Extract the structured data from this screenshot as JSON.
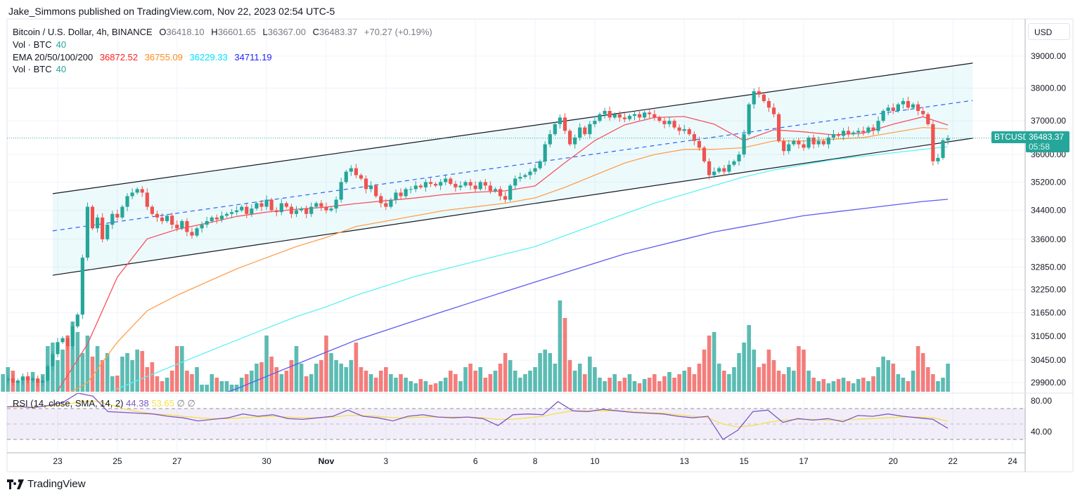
{
  "header": {
    "published_text": "Jake_Simmons published on TradingView.com, Nov 22, 2023 02:54 UTC-5"
  },
  "legend": {
    "symbol": "Bitcoin / U.S. Dollar, 4h, BINANCE",
    "o_label": "O",
    "o": "36418.10",
    "h_label": "H",
    "h": "36601.65",
    "l_label": "L",
    "l": "36367.00",
    "c_label": "C",
    "c": "36483.37",
    "change": "+70.27 (+0.19%)",
    "vol_label": "Vol · BTC",
    "vol_value": "40",
    "ema_label": "EMA 20/50/100/200",
    "ema_values": [
      "36872.52",
      "36755.09",
      "36229.33",
      "34711.19"
    ],
    "vol2_label": "Vol · BTC",
    "vol2_value": "40"
  },
  "rsi_legend": {
    "label": "RSI (14, close, SMA, 14, 2)",
    "rsi": "44.38",
    "sma": "53.65",
    "na1": "∅",
    "na2": "∅"
  },
  "price_axis": {
    "currency": "USD",
    "symbol_tag": "BTCUSD",
    "last_price": "36483.37",
    "countdown": "05:58"
  },
  "footer": {
    "logo_text": "TradingView"
  },
  "colors": {
    "up": "#26a69a",
    "down": "#ef5350",
    "ema20": "#f7525f",
    "ema50": "#ffa04d",
    "ema100": "#5ef2f2",
    "ema200": "#5b5bf0",
    "ema20_legend": "#ff2222",
    "ema50_legend": "#ff8c1a",
    "ema100_legend": "#00e5ff",
    "ema200_legend": "#2222ff",
    "rsi": "#7e57c2",
    "rsi_sma": "#f5e04a",
    "channel": "#131722",
    "midline": "#2962ff"
  },
  "chart_data": {
    "type": "candlestick",
    "symbol": "BTCUSD",
    "interval": "4h",
    "first_candle_time": "2023-10-21T04:00",
    "price_scale": "log",
    "grid": true,
    "y_ticks": [
      39000,
      38000,
      37000,
      36000,
      35200,
      34400,
      33600,
      32850,
      32250,
      31650,
      31050,
      30450,
      29900
    ],
    "x_ticks": [
      {
        "label": "23",
        "date": "2023-10-23"
      },
      {
        "label": "25",
        "date": "2023-10-25"
      },
      {
        "label": "27",
        "date": "2023-10-27"
      },
      {
        "label": "30",
        "date": "2023-10-30"
      },
      {
        "label": "Nov",
        "date": "2023-11-01"
      },
      {
        "label": "3",
        "date": "2023-11-03"
      },
      {
        "label": "6",
        "date": "2023-11-06"
      },
      {
        "label": "8",
        "date": "2023-11-08"
      },
      {
        "label": "10",
        "date": "2023-11-10"
      },
      {
        "label": "13",
        "date": "2023-11-13"
      },
      {
        "label": "15",
        "date": "2023-11-15"
      },
      {
        "label": "17",
        "date": "2023-11-17"
      },
      {
        "label": "20",
        "date": "2023-11-20"
      },
      {
        "label": "22",
        "date": "2023-11-22"
      },
      {
        "label": "24",
        "date": "2023-11-24"
      }
    ],
    "closes": [
      29950,
      30000,
      29900,
      29950,
      30050,
      29950,
      30000,
      29900,
      29950,
      30300,
      30600,
      30900,
      31000,
      30800,
      31300,
      31600,
      33100,
      34500,
      33900,
      34200,
      33600,
      34000,
      34300,
      34200,
      34500,
      34800,
      34900,
      35000,
      34900,
      34500,
      34300,
      34200,
      34100,
      34250,
      34000,
      33900,
      34100,
      33800,
      33700,
      33900,
      34000,
      34100,
      34200,
      34150,
      34250,
      34300,
      34350,
      34400,
      34500,
      34300,
      34450,
      34600,
      34500,
      34700,
      34400,
      34350,
      34600,
      34500,
      34300,
      34400,
      34450,
      34300,
      34500,
      34600,
      34500,
      34400,
      34450,
      34700,
      35200,
      35500,
      35600,
      35400,
      35300,
      35000,
      35100,
      34800,
      34600,
      34500,
      34700,
      34900,
      34800,
      35000,
      35000,
      35100,
      35050,
      35200,
      35150,
      35100,
      35200,
      35300,
      35150,
      35050,
      35100,
      35200,
      35100,
      35000,
      35200,
      35100,
      34950,
      35000,
      34800,
      34700,
      35100,
      35300,
      35350,
      35400,
      35500,
      35600,
      35800,
      36300,
      36600,
      36900,
      37100,
      36700,
      36300,
      36500,
      36800,
      36600,
      36900,
      37000,
      37200,
      37300,
      37100,
      37200,
      37100,
      37050,
      37150,
      37200,
      37100,
      37250,
      37200,
      37100,
      37000,
      36900,
      37000,
      36800,
      36700,
      36750,
      36600,
      36400,
      36200,
      35800,
      35400,
      35500,
      35600,
      35500,
      35700,
      35800,
      36000,
      36600,
      37500,
      37900,
      37800,
      37600,
      37400,
      37200,
      36400,
      36100,
      36300,
      36400,
      36300,
      36200,
      36500,
      36300,
      36400,
      36300,
      36500,
      36600,
      36550,
      36700,
      36600,
      36650,
      36700,
      36650,
      36800,
      36700,
      37000,
      37300,
      37400,
      37300,
      37500,
      37600,
      37400,
      37500,
      37300,
      37200,
      36900,
      35800,
      35900,
      36418.1,
      36483.37
    ],
    "volumes": [
      25,
      35,
      30,
      15,
      20,
      22,
      28,
      15,
      25,
      65,
      70,
      45,
      60,
      80,
      100,
      85,
      55,
      80,
      50,
      65,
      45,
      55,
      22,
      23,
      50,
      55,
      45,
      60,
      58,
      35,
      42,
      22,
      15,
      20,
      30,
      65,
      65,
      30,
      25,
      35,
      10,
      10,
      25,
      20,
      15,
      15,
      10,
      10,
      20,
      25,
      30,
      40,
      42,
      80,
      50,
      35,
      25,
      30,
      45,
      65,
      40,
      22,
      25,
      40,
      45,
      80,
      55,
      45,
      40,
      35,
      45,
      70,
      35,
      30,
      25,
      20,
      30,
      35,
      25,
      20,
      25,
      20,
      15,
      12,
      18,
      15,
      10,
      12,
      15,
      20,
      30,
      25,
      15,
      35,
      40,
      30,
      35,
      20,
      25,
      30,
      40,
      55,
      45,
      30,
      20,
      25,
      30,
      35,
      55,
      60,
      55,
      40,
      130,
      105,
      45,
      30,
      40,
      25,
      50,
      35,
      20,
      15,
      20,
      25,
      15,
      20,
      25,
      15,
      12,
      18,
      20,
      25,
      15,
      22,
      28,
      20,
      25,
      30,
      35,
      25,
      40,
      60,
      80,
      85,
      40,
      30,
      25,
      35,
      55,
      70,
      95,
      60,
      35,
      40,
      60,
      45,
      30,
      25,
      35,
      30,
      65,
      60,
      30,
      20,
      15,
      18,
      12,
      15,
      18,
      20,
      15,
      12,
      18,
      20,
      15,
      22,
      35,
      50,
      45,
      40,
      25,
      20,
      15,
      30,
      65,
      55,
      35,
      25,
      15,
      20,
      40
    ],
    "ema_dates_start": "2023-10-23",
    "ema": [
      {
        "name": "EMA 20",
        "values": [
          29700,
          30850,
          32580,
          33610,
          33870,
          34040,
          34230,
          34350,
          34430,
          34490,
          34590,
          34670,
          34750,
          34850,
          34910,
          34950,
          35090,
          35760,
          36410,
          36880,
          37100,
          37130,
          36900,
          36410,
          36730,
          36670,
          36580,
          36630,
          36900,
          37120,
          36872.52
        ]
      },
      {
        "name": "EMA 50",
        "values": [
          29500,
          29900,
          30900,
          31700,
          32100,
          32450,
          32800,
          33100,
          33400,
          33650,
          33950,
          34100,
          34250,
          34400,
          34500,
          34600,
          34750,
          35050,
          35400,
          35750,
          36000,
          36150,
          36150,
          36200,
          36400,
          36400,
          36450,
          36500,
          36650,
          36800,
          36755.09
        ]
      },
      {
        "name": "EMA 100",
        "values": [
          29000,
          29400,
          29750,
          30050,
          30350,
          30650,
          30950,
          31250,
          31550,
          31800,
          32100,
          32350,
          32600,
          32800,
          33000,
          33200,
          33400,
          33700,
          34000,
          34300,
          34600,
          34850,
          35100,
          35350,
          35550,
          35700,
          35850,
          35950,
          36050,
          36150,
          36229.33
        ]
      },
      {
        "name": "EMA 200",
        "values": [
          28400,
          28600,
          28800,
          29000,
          29250,
          29500,
          29750,
          30050,
          30350,
          30650,
          30950,
          31200,
          31450,
          31700,
          31950,
          32200,
          32450,
          32700,
          32950,
          33200,
          33400,
          33600,
          33800,
          33950,
          34100,
          34250,
          34350,
          34450,
          34550,
          34650,
          34711.19
        ]
      }
    ],
    "channel": {
      "upper": [
        {
          "time": "2023-10-22T20:00",
          "price": 34870
        },
        {
          "time": "2023-11-22T16:00",
          "price": 38780
        }
      ],
      "middle": [
        {
          "time": "2023-10-22T20:00",
          "price": 33830
        },
        {
          "time": "2023-11-22T16:00",
          "price": 37620
        }
      ],
      "lower": [
        {
          "time": "2023-10-22T20:00",
          "price": 32630
        },
        {
          "time": "2023-11-22T16:00",
          "price": 36480
        }
      ]
    },
    "rsi": {
      "levels": [
        70,
        50,
        30
      ],
      "y_ticks": [
        80,
        40
      ],
      "step": "12h",
      "rsi": [
        72,
        73,
        71,
        74,
        78,
        90,
        86,
        66,
        65,
        64,
        63,
        60,
        58,
        54,
        56,
        58,
        63,
        60,
        62,
        57,
        56,
        58,
        60,
        68,
        60,
        58,
        54,
        60,
        62,
        59,
        58,
        59,
        57,
        48,
        62,
        63,
        62,
        79,
        67,
        66,
        69,
        67,
        65,
        64,
        63,
        60,
        58,
        60,
        30,
        42,
        66,
        68,
        52,
        57,
        55,
        57,
        53,
        61,
        60,
        63,
        60,
        58,
        56,
        44.38
      ],
      "sma": [
        72,
        72,
        72,
        73,
        75,
        78,
        80,
        76,
        70,
        66,
        63,
        62,
        60,
        58,
        57,
        57,
        58,
        59,
        60,
        59,
        58,
        58,
        59,
        61,
        61,
        60,
        58,
        58,
        59,
        59,
        59,
        59,
        58,
        56,
        56,
        58,
        60,
        64,
        67,
        67,
        67,
        67,
        66,
        65,
        64,
        62,
        60,
        58,
        50,
        46,
        48,
        52,
        55,
        56,
        56,
        55,
        55,
        56,
        57,
        58,
        59,
        59,
        58,
        53.65
      ]
    }
  }
}
